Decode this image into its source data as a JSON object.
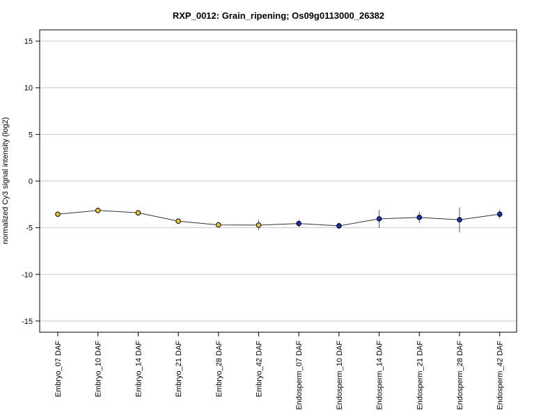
{
  "chart_data": {
    "type": "line",
    "title": "RXP_0012: Grain_ripening; Os09g0113000_26382",
    "xlabel": "",
    "ylabel": "normalized Cy3 signal intensity (log2)",
    "ylim": [
      -16.2,
      16.2
    ],
    "yticks": [
      -15,
      -10,
      -5,
      0,
      5,
      10,
      15
    ],
    "grid": true,
    "categories": [
      "Embryo_07 DAF",
      "Embryo_10 DAF",
      "Embryo_14 DAF",
      "Embryo_21 DAF",
      "Embryo_28 DAF",
      "Embryo_42 DAF",
      "Endosperm_07 DAF",
      "Endosperm_10 DAF",
      "Endosperm_14 DAF",
      "Endosperm_21 DAF",
      "Endosperm_28 DAF",
      "Endosperm_42 DAF"
    ],
    "series": [
      {
        "values": [
          -3.55,
          -3.15,
          -3.4,
          -4.3,
          -4.7,
          -4.72,
          -4.55,
          -4.8,
          -4.05,
          -3.9,
          -4.15,
          -3.55
        ],
        "error": [
          0.1,
          0.15,
          0.1,
          0.1,
          0.1,
          0.55,
          0.4,
          0.35,
          0.95,
          0.6,
          1.35,
          0.5
        ],
        "point_colors": [
          "#e8c43a",
          "#e8c43a",
          "#e8c43a",
          "#e8c43a",
          "#e8c43a",
          "#e8c43a",
          "#1a2fb5",
          "#1a2fb5",
          "#1a2fb5",
          "#1a2fb5",
          "#1a2fb5",
          "#1a2fb5"
        ]
      }
    ]
  },
  "colors": {
    "embryo": "#e8c43a",
    "endosperm": "#1a2fb5",
    "grid": "#c8c8c8",
    "line": "#333333"
  }
}
